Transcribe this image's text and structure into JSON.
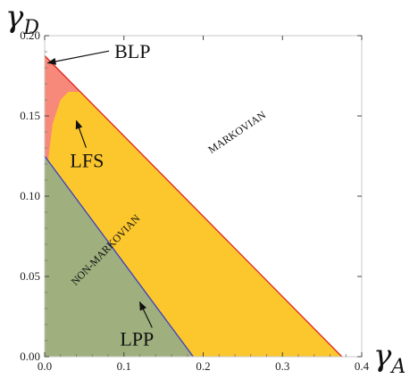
{
  "chart_data": {
    "type": "area",
    "xlabel_symbol": "γ",
    "xlabel_sub": "A",
    "ylabel_symbol": "γ",
    "ylabel_sub": "D",
    "xlim": [
      0,
      0.4
    ],
    "ylim": [
      0,
      0.2
    ],
    "xticks": [
      "0.0",
      "0.1",
      "0.2",
      "0.3",
      "0.4"
    ],
    "yticks": [
      "0.00",
      "0.05",
      "0.10",
      "0.15",
      "0.20"
    ],
    "grid": false,
    "regions": [
      {
        "name": "BLP",
        "color": "#f7897a",
        "boundary": [
          [
            0,
            0.1875
          ],
          [
            0.375,
            0
          ]
        ]
      },
      {
        "name": "LFS",
        "color": "#fcc72d",
        "boundary": [
          [
            0,
            0.085
          ],
          [
            0.002,
            0.105
          ],
          [
            0.005,
            0.125
          ],
          [
            0.01,
            0.145
          ],
          [
            0.02,
            0.16
          ],
          [
            0.03,
            0.165
          ],
          [
            0.04,
            0.165
          ],
          [
            0.045,
            0.165
          ],
          [
            0.375,
            0
          ]
        ]
      },
      {
        "name": "LPP",
        "color": "#9faf7e",
        "boundary": [
          [
            0,
            0.125
          ],
          [
            0.1875,
            0
          ]
        ]
      }
    ],
    "boundary_lines": [
      {
        "color": "#e0201d",
        "points": [
          [
            0,
            0.1875
          ],
          [
            0.375,
            0
          ]
        ]
      },
      {
        "color": "#3b3fc0",
        "points": [
          [
            0,
            0.125
          ],
          [
            0.1875,
            0
          ]
        ]
      }
    ],
    "annotations": [
      {
        "text": "BLP",
        "x": 0.088,
        "y": 0.186,
        "arrow_to": [
          0.004,
          0.183
        ]
      },
      {
        "text": "LFS",
        "x": 0.032,
        "y": 0.118,
        "arrow_to": [
          0.04,
          0.147
        ]
      },
      {
        "text": "LPP",
        "x": 0.095,
        "y": 0.007,
        "arrow_to": [
          0.12,
          0.034
        ]
      }
    ],
    "band_labels": [
      {
        "text": "MARKOVIAN",
        "x": 0.245,
        "y": 0.138,
        "angle": -34
      },
      {
        "text": "NON-MARKOVIAN",
        "x": 0.08,
        "y": 0.065,
        "angle": -46
      }
    ]
  }
}
